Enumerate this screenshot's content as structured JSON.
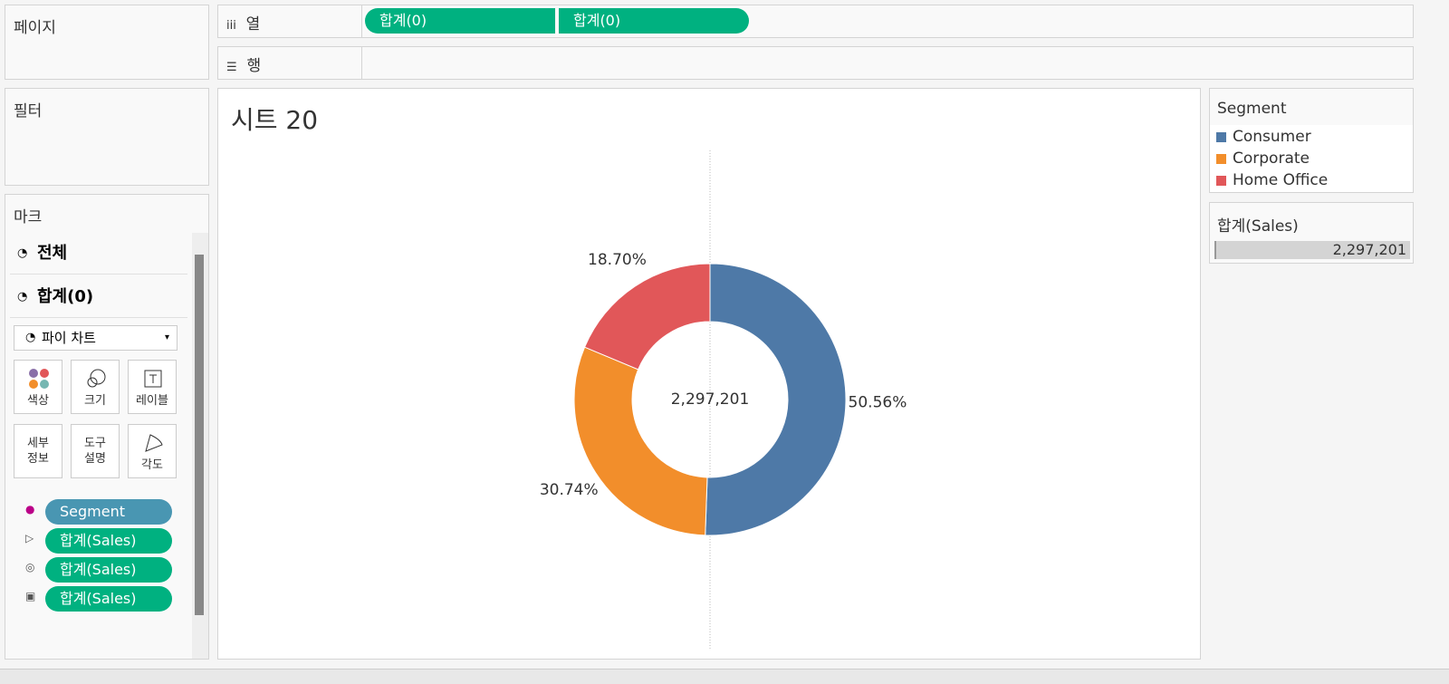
{
  "shelves": {
    "pages": "페이지",
    "filters": "필터",
    "columns_label": "열",
    "rows_label": "행",
    "column_pills": [
      "합계(0)",
      "합계(0)"
    ]
  },
  "marks": {
    "title": "마크",
    "cards": [
      "전체",
      "합계(0)"
    ],
    "mark_type": "파이 차트",
    "buttons": [
      "색상",
      "크기",
      "레이블",
      "세부 정보",
      "도구 설명",
      "각도"
    ],
    "pills": [
      "Segment",
      "합계(Sales)",
      "합계(Sales)",
      "합계(Sales)"
    ]
  },
  "chart_data": {
    "type": "pie",
    "title": "시트 20",
    "categories": [
      "Consumer",
      "Corporate",
      "Home Office"
    ],
    "values": [
      50.56,
      30.74,
      18.7
    ],
    "value_labels": [
      "50.56%",
      "30.74%",
      "18.70%"
    ],
    "colors": [
      "#4e79a7",
      "#f28e2b",
      "#e15759"
    ],
    "total_label": "2,297,201",
    "legend_title": "Segment",
    "size_legend_title": "합계(Sales)"
  }
}
